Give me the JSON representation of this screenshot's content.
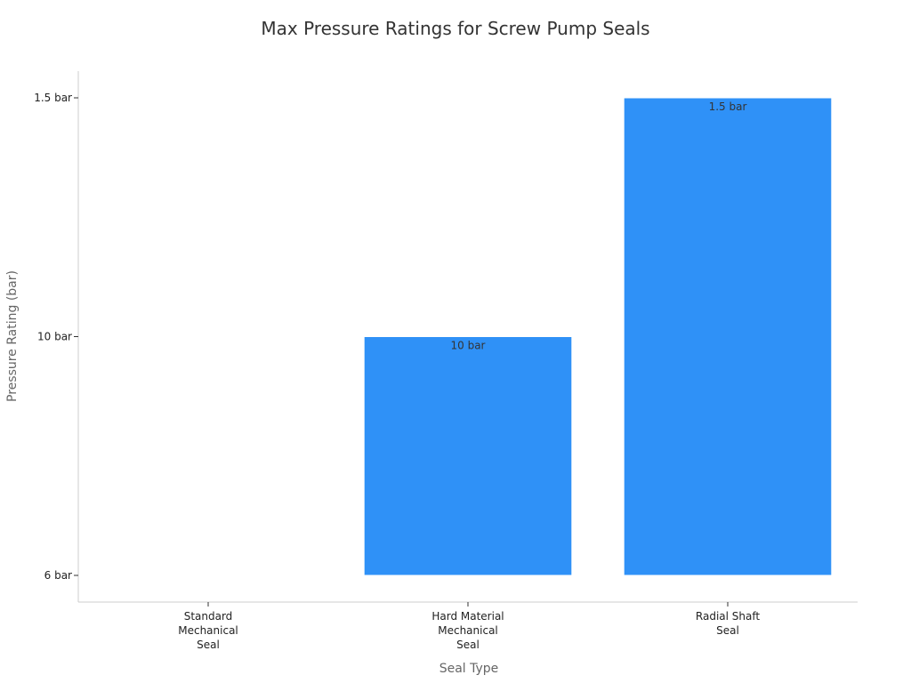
{
  "chart_data": {
    "type": "bar",
    "title": "Max Pressure Ratings for Screw Pump Seals",
    "xlabel": "Seal Type",
    "ylabel": "Pressure Rating (bar)",
    "y_scale": "categorical",
    "y_ticks": [
      "6 bar",
      "10 bar",
      "1.5 bar"
    ],
    "categories": [
      [
        "Standard",
        "Mechanical",
        "Seal"
      ],
      [
        "Hard Material",
        "Mechanical",
        "Seal"
      ],
      [
        "Radial Shaft",
        "Seal"
      ]
    ],
    "values": [
      "6 bar",
      "10 bar",
      "1.5 bar"
    ],
    "data_labels": [
      "",
      "10 bar",
      "1.5 bar"
    ],
    "bar_color": "#2f91f7",
    "grid": false,
    "legend": "none"
  }
}
